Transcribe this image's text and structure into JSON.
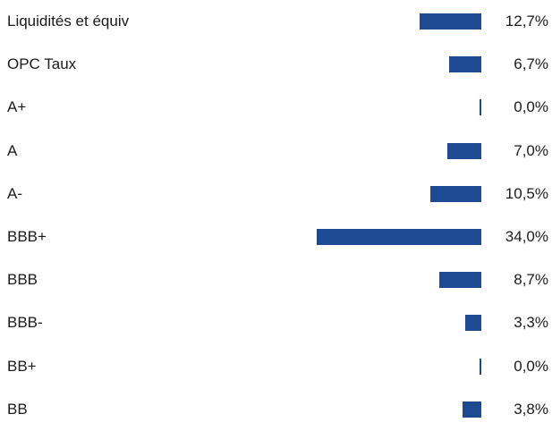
{
  "chart_data": {
    "type": "bar",
    "orientation": "horizontal",
    "bar_color": "#1e4a94",
    "categories": [
      "Liquidités et équiv",
      "OPC Taux",
      "A+",
      "A",
      "A-",
      "BBB+",
      "BBB",
      "BBB-",
      "BB+",
      "BB"
    ],
    "values": [
      12.7,
      6.7,
      0.0,
      7.0,
      10.5,
      34.0,
      8.7,
      3.3,
      0.0,
      3.8
    ],
    "value_labels": [
      "12,7%",
      "6,7%",
      "0,0%",
      "7,0%",
      "10,5%",
      "34,0%",
      "8,7%",
      "3,3%",
      "0,0%",
      "3,8%"
    ],
    "value_unit": "%",
    "grid": false,
    "legend": "none"
  }
}
